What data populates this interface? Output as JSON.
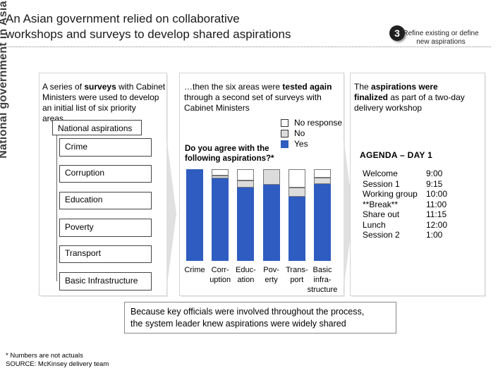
{
  "header": {
    "title_line1": "An Asian government relied on collaborative",
    "title_line2": "workshops and surveys to develop shared aspirations",
    "step_number": "3",
    "step_label": "Refine existing or define new aspirations"
  },
  "side_label": "National government in Asia",
  "column1": {
    "intro_pre": "A series of ",
    "intro_bold": "surveys",
    "intro_post": " with Cabinet Ministers were used to develop an initial list of six priority areas…",
    "header_box": "National aspirations",
    "items": [
      "Crime",
      "Corruption",
      "Education",
      "Poverty",
      "Transport",
      "Basic Infrastructure"
    ]
  },
  "column2": {
    "intro_pre": "…then the six areas were ",
    "intro_bold": "tested again",
    "intro_post": " through a second set of surveys with Cabinet Ministers",
    "question": "Do you agree with the following aspirations?*",
    "legend": [
      {
        "label": "No response",
        "color": "#ffffff"
      },
      {
        "label": "No",
        "color": "#dcdcdc"
      },
      {
        "label": "Yes",
        "color": "#2e5cc0"
      }
    ]
  },
  "chart_data": {
    "type": "bar",
    "stacked": true,
    "categories": [
      "Crime",
      "Corruption",
      "Education",
      "Poverty",
      "Transport",
      "Basic infrastructure"
    ],
    "category_labels": [
      [
        "Crime"
      ],
      [
        "Corr-",
        "uption"
      ],
      [
        "Educ-",
        "ation"
      ],
      [
        "Pov-",
        "erty"
      ],
      [
        "Trans-",
        "port"
      ],
      [
        "Basic",
        "infra-",
        "structure"
      ]
    ],
    "series": [
      {
        "name": "Yes",
        "values": [
          100,
          90,
          80,
          83,
          70,
          84
        ],
        "color": "#2e5cc0"
      },
      {
        "name": "No",
        "values": [
          0,
          3,
          8,
          17,
          10,
          7
        ],
        "color": "#dcdcdc"
      },
      {
        "name": "No response",
        "values": [
          0,
          7,
          12,
          0,
          20,
          9
        ],
        "color": "#ffffff"
      }
    ],
    "ylim": [
      0,
      100
    ]
  },
  "column3": {
    "intro_pre": "The ",
    "intro_bold1": "aspirations were",
    "intro_bold2": "finalized",
    "intro_post": " as part of a two-day delivery workshop",
    "agenda_title": "AGENDA – DAY 1",
    "agenda": [
      {
        "item": "Welcome",
        "time": "9:00"
      },
      {
        "item": "Session 1",
        "time": "9:15"
      },
      {
        "item": "Working group",
        "time": "10:00"
      },
      {
        "item": "**Break**",
        "time": "11:00"
      },
      {
        "item": "Share out",
        "time": "11:15"
      },
      {
        "item": "Lunch",
        "time": "12:00"
      },
      {
        "item": "Session 2",
        "time": "1:00"
      }
    ]
  },
  "callout": {
    "line1": "Because key officials were involved throughout the process,",
    "line2": "the system leader knew aspirations were widely shared"
  },
  "footer": {
    "note": "* Numbers are not actuals",
    "source": "SOURCE: McKinsey delivery team"
  }
}
